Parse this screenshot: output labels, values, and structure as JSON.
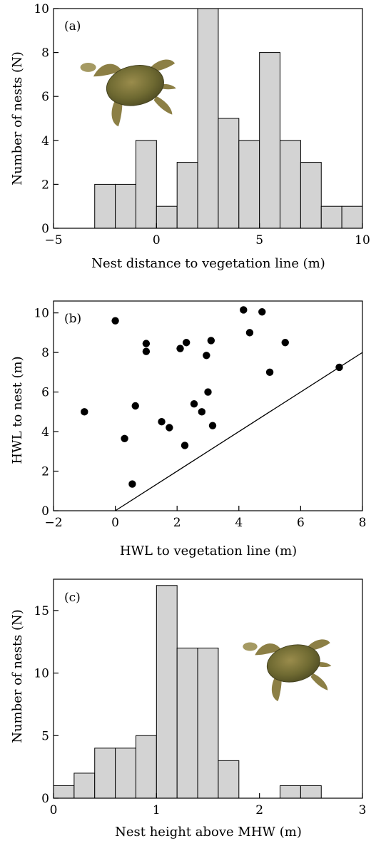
{
  "chart_data": [
    {
      "type": "bar",
      "panel_label": "(a)",
      "title": "",
      "xlabel": "Nest distance to vegetation line (m)",
      "ylabel": "Number of nests (N)",
      "xlim": [
        -5,
        10
      ],
      "ylim": [
        0,
        10
      ],
      "xticks": [
        -5,
        0,
        5,
        10
      ],
      "yticks": [
        0,
        2,
        4,
        6,
        8,
        10
      ],
      "bin_width": 1,
      "bins": [
        {
          "start": -3,
          "end": -2,
          "value": 2
        },
        {
          "start": -2,
          "end": -1,
          "value": 2
        },
        {
          "start": -1,
          "end": 0,
          "value": 4
        },
        {
          "start": 0,
          "end": 1,
          "value": 1
        },
        {
          "start": 1,
          "end": 2,
          "value": 3
        },
        {
          "start": 2,
          "end": 3,
          "value": 10
        },
        {
          "start": 3,
          "end": 4,
          "value": 5
        },
        {
          "start": 4,
          "end": 5,
          "value": 4
        },
        {
          "start": 5,
          "end": 6,
          "value": 8
        },
        {
          "start": 6,
          "end": 7,
          "value": 4
        },
        {
          "start": 7,
          "end": 8,
          "value": 3
        },
        {
          "start": 8,
          "end": 9,
          "value": 1
        },
        {
          "start": 9,
          "end": 10,
          "value": 1
        }
      ],
      "bar_color": "#d3d3d3",
      "grid": false,
      "illustration": "sea-turtle-icon"
    },
    {
      "type": "scatter",
      "panel_label": "(b)",
      "title": "",
      "xlabel": "HWL to vegetation line (m)",
      "ylabel": "HWL to nest (m)",
      "xlim": [
        -2,
        8
      ],
      "ylim": [
        0,
        10.6
      ],
      "xticks": [
        -2,
        0,
        2,
        4,
        6,
        8
      ],
      "yticks": [
        0,
        2,
        4,
        6,
        8,
        10
      ],
      "points": [
        {
          "x": -1.0,
          "y": 5.0
        },
        {
          "x": 0.0,
          "y": 9.6
        },
        {
          "x": 0.3,
          "y": 3.65
        },
        {
          "x": 0.55,
          "y": 1.35
        },
        {
          "x": 0.65,
          "y": 5.3
        },
        {
          "x": 1.0,
          "y": 8.45
        },
        {
          "x": 1.0,
          "y": 8.05
        },
        {
          "x": 1.5,
          "y": 4.5
        },
        {
          "x": 1.75,
          "y": 4.2
        },
        {
          "x": 2.1,
          "y": 8.2
        },
        {
          "x": 2.25,
          "y": 3.3
        },
        {
          "x": 2.3,
          "y": 8.5
        },
        {
          "x": 2.55,
          "y": 5.4
        },
        {
          "x": 2.8,
          "y": 5.0
        },
        {
          "x": 2.95,
          "y": 7.85
        },
        {
          "x": 3.0,
          "y": 6.0
        },
        {
          "x": 3.1,
          "y": 8.6
        },
        {
          "x": 3.15,
          "y": 4.3
        },
        {
          "x": 4.15,
          "y": 10.15
        },
        {
          "x": 4.35,
          "y": 9.0
        },
        {
          "x": 4.75,
          "y": 10.05
        },
        {
          "x": 5.0,
          "y": 7.0
        },
        {
          "x": 5.5,
          "y": 8.5
        },
        {
          "x": 7.25,
          "y": 7.25
        }
      ],
      "reference_line": {
        "from": [
          0,
          0
        ],
        "to": [
          8,
          8
        ]
      },
      "grid": false
    },
    {
      "type": "bar",
      "panel_label": "(c)",
      "title": "",
      "xlabel": "Nest height above MHW (m)",
      "ylabel": "Number of nests (N)",
      "xlim": [
        0,
        3
      ],
      "ylim": [
        0,
        17.5
      ],
      "xticks": [
        0,
        1,
        2,
        3
      ],
      "yticks": [
        0,
        5,
        10,
        15
      ],
      "bin_width": 0.2,
      "bins": [
        {
          "start": 0.0,
          "end": 0.2,
          "value": 1
        },
        {
          "start": 0.2,
          "end": 0.4,
          "value": 2
        },
        {
          "start": 0.4,
          "end": 0.6,
          "value": 4
        },
        {
          "start": 0.6,
          "end": 0.8,
          "value": 4
        },
        {
          "start": 0.8,
          "end": 1.0,
          "value": 5
        },
        {
          "start": 1.0,
          "end": 1.2,
          "value": 17
        },
        {
          "start": 1.2,
          "end": 1.4,
          "value": 12
        },
        {
          "start": 1.4,
          "end": 1.6,
          "value": 12
        },
        {
          "start": 1.6,
          "end": 1.8,
          "value": 3
        },
        {
          "start": 2.2,
          "end": 2.4,
          "value": 1
        },
        {
          "start": 2.4,
          "end": 2.6,
          "value": 1
        }
      ],
      "bar_color": "#d3d3d3",
      "grid": false,
      "illustration": "sea-turtle-icon"
    }
  ]
}
